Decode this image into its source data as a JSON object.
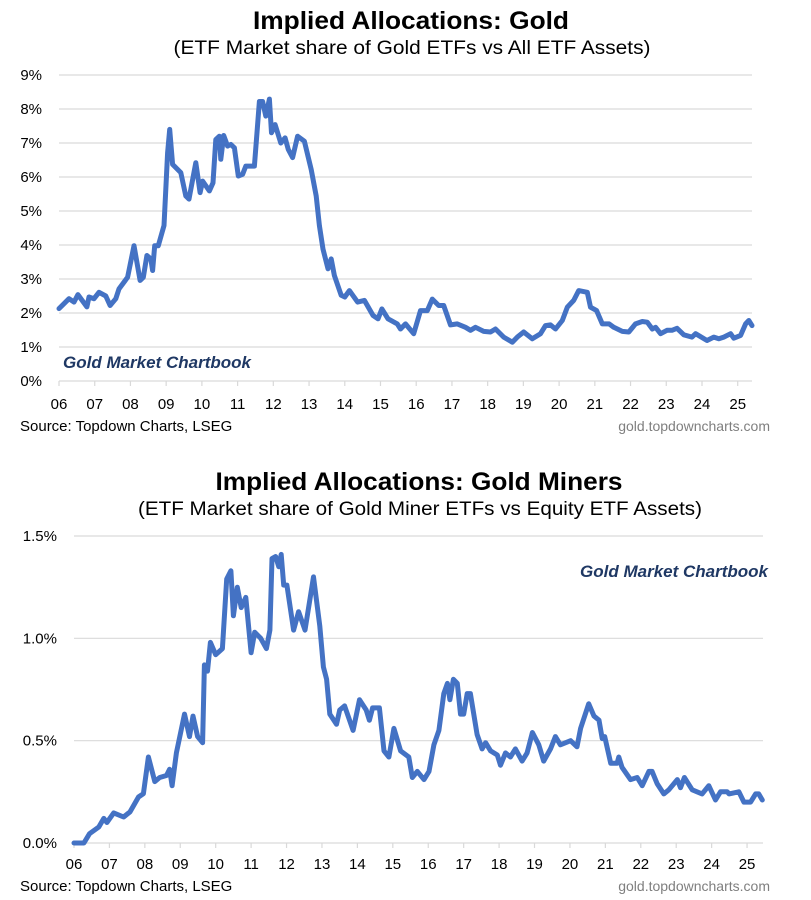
{
  "colors": {
    "line": "#4472c4",
    "brand": "#1f3864",
    "grid": "#d9d9d9"
  },
  "chart_data": [
    {
      "type": "line",
      "title": "Implied Allocations: Gold",
      "subtitle": "(ETF Market share of Gold ETFs vs All ETF Assets)",
      "source": "Source: Topdown Charts, LSEG",
      "url": "gold.topdowncharts.com",
      "watermark": "Gold Market Chartbook",
      "xlim": [
        2006,
        2025.4
      ],
      "ylim": [
        0,
        9
      ],
      "grid": true,
      "x_ticks": [
        2006,
        2007,
        2008,
        2009,
        2010,
        2011,
        2012,
        2013,
        2014,
        2015,
        2016,
        2017,
        2018,
        2019,
        2020,
        2021,
        2022,
        2023,
        2024,
        2025
      ],
      "x_tick_labels": [
        "06",
        "07",
        "08",
        "09",
        "10",
        "11",
        "12",
        "13",
        "14",
        "15",
        "16",
        "17",
        "18",
        "19",
        "20",
        "21",
        "22",
        "23",
        "24",
        "25"
      ],
      "y_ticks": [
        0,
        1,
        2,
        3,
        4,
        5,
        6,
        7,
        8,
        9
      ],
      "y_tick_labels": [
        "0%",
        "1%",
        "2%",
        "3%",
        "4%",
        "5%",
        "6%",
        "7%",
        "8%",
        "9%"
      ],
      "series": [
        {
          "x": [
            2006.0,
            2006.28,
            2006.42,
            2006.53,
            2006.78,
            2006.84,
            2006.98,
            2007.12,
            2007.31,
            2007.43,
            2007.59,
            2007.68,
            2007.92,
            2008.1,
            2008.27,
            2008.36,
            2008.46,
            2008.57,
            2008.62,
            2008.68,
            2008.78,
            2008.94,
            2009.04,
            2009.1,
            2009.18,
            2009.41,
            2009.55,
            2009.64,
            2009.83,
            2009.95,
            2010.02,
            2010.21,
            2010.31,
            2010.39,
            2010.49,
            2010.53,
            2010.61,
            2010.72,
            2010.81,
            2010.91,
            2011.02,
            2011.14,
            2011.23,
            2011.47,
            2011.61,
            2011.7,
            2011.79,
            2011.89,
            2011.95,
            2012.05,
            2012.21,
            2012.33,
            2012.42,
            2012.54,
            2012.68,
            2012.87,
            2013.06,
            2013.2,
            2013.29,
            2013.39,
            2013.53,
            2013.62,
            2013.71,
            2013.9,
            2014.0,
            2014.13,
            2014.36,
            2014.55,
            2014.79,
            2014.93,
            2015.04,
            2015.21,
            2015.47,
            2015.56,
            2015.7,
            2015.93,
            2016.12,
            2016.31,
            2016.45,
            2016.63,
            2016.77,
            2016.96,
            2017.15,
            2017.38,
            2017.52,
            2017.66,
            2017.89,
            2018.08,
            2018.22,
            2018.45,
            2018.69,
            2018.83,
            2019.01,
            2019.25,
            2019.48,
            2019.62,
            2019.76,
            2019.9,
            2020.09,
            2020.23,
            2020.41,
            2020.55,
            2020.79,
            2020.88,
            2021.05,
            2021.21,
            2021.4,
            2021.53,
            2021.77,
            2021.95,
            2022.14,
            2022.33,
            2022.47,
            2022.61,
            2022.7,
            2022.84,
            2023.02,
            2023.16,
            2023.3,
            2023.49,
            2023.72,
            2023.82,
            2024.14,
            2024.33,
            2024.47,
            2024.61,
            2024.8,
            2024.89,
            2025.08,
            2025.22,
            2025.31,
            2025.4
          ],
          "y": [
            2.13,
            2.42,
            2.32,
            2.54,
            2.18,
            2.47,
            2.42,
            2.61,
            2.5,
            2.22,
            2.42,
            2.71,
            3.05,
            3.98,
            2.96,
            3.05,
            3.69,
            3.59,
            3.25,
            3.98,
            3.98,
            4.57,
            6.71,
            7.4,
            6.37,
            6.13,
            5.44,
            5.35,
            6.42,
            5.54,
            5.88,
            5.59,
            5.83,
            7.1,
            7.2,
            6.52,
            7.22,
            6.91,
            6.96,
            6.86,
            6.03,
            6.08,
            6.32,
            6.32,
            8.22,
            8.22,
            7.79,
            8.29,
            7.3,
            7.54,
            7.0,
            7.15,
            6.81,
            6.57,
            7.2,
            7.05,
            6.22,
            5.44,
            4.57,
            3.88,
            3.3,
            3.59,
            3.1,
            2.52,
            2.47,
            2.66,
            2.32,
            2.37,
            1.93,
            1.83,
            2.12,
            1.83,
            1.68,
            1.53,
            1.68,
            1.39,
            2.07,
            2.07,
            2.41,
            2.22,
            2.22,
            1.65,
            1.68,
            1.58,
            1.49,
            1.58,
            1.46,
            1.44,
            1.53,
            1.29,
            1.14,
            1.29,
            1.44,
            1.24,
            1.39,
            1.63,
            1.65,
            1.53,
            1.78,
            2.17,
            2.37,
            2.66,
            2.61,
            2.17,
            2.07,
            1.68,
            1.68,
            1.58,
            1.46,
            1.44,
            1.68,
            1.75,
            1.73,
            1.53,
            1.58,
            1.39,
            1.49,
            1.49,
            1.55,
            1.36,
            1.29,
            1.39,
            1.19,
            1.29,
            1.24,
            1.29,
            1.39,
            1.26,
            1.34,
            1.68,
            1.78,
            1.63
          ]
        }
      ]
    },
    {
      "type": "line",
      "title": "Implied Allocations: Gold Miners",
      "subtitle": "(ETF Market share of Gold Miner ETFs vs Equity ETF Assets)",
      "source": "Source: Topdown Charts, LSEG",
      "url": "gold.topdowncharts.com",
      "watermark": "Gold Market Chartbook",
      "xlim": [
        2006,
        2025.45
      ],
      "ylim": [
        0,
        1.5
      ],
      "grid": true,
      "x_ticks": [
        2006,
        2007,
        2008,
        2009,
        2010,
        2011,
        2012,
        2013,
        2014,
        2015,
        2016,
        2017,
        2018,
        2019,
        2020,
        2021,
        2022,
        2023,
        2024,
        2025
      ],
      "x_tick_labels": [
        "06",
        "07",
        "08",
        "09",
        "10",
        "11",
        "12",
        "13",
        "14",
        "15",
        "16",
        "17",
        "18",
        "19",
        "20",
        "21",
        "22",
        "23",
        "24",
        "25"
      ],
      "y_ticks": [
        0,
        0.5,
        1.0,
        1.5
      ],
      "y_tick_labels": [
        "0.0%",
        "0.5%",
        "1.0%",
        "1.5%"
      ],
      "series": [
        {
          "x": [
            2006.0,
            2006.28,
            2006.44,
            2006.7,
            2006.84,
            2006.93,
            2007.12,
            2007.4,
            2007.58,
            2007.82,
            2007.96,
            2008.1,
            2008.28,
            2008.42,
            2008.61,
            2008.7,
            2008.77,
            2008.89,
            2009.12,
            2009.26,
            2009.36,
            2009.49,
            2009.63,
            2009.68,
            2009.77,
            2009.85,
            2010.0,
            2010.19,
            2010.31,
            2010.43,
            2010.5,
            2010.61,
            2010.72,
            2010.85,
            2011.0,
            2011.1,
            2011.27,
            2011.43,
            2011.53,
            2011.59,
            2011.69,
            2011.78,
            2011.85,
            2011.92,
            2012.01,
            2012.2,
            2012.34,
            2012.52,
            2012.76,
            2012.94,
            2013.04,
            2013.13,
            2013.22,
            2013.41,
            2013.5,
            2013.64,
            2013.88,
            2014.06,
            2014.25,
            2014.34,
            2014.43,
            2014.62,
            2014.75,
            2014.89,
            2015.03,
            2015.22,
            2015.45,
            2015.55,
            2015.69,
            2015.88,
            2016.02,
            2016.16,
            2016.3,
            2016.44,
            2016.54,
            2016.61,
            2016.71,
            2016.82,
            2016.91,
            2017.0,
            2017.1,
            2017.19,
            2017.38,
            2017.52,
            2017.62,
            2017.76,
            2017.95,
            2018.04,
            2018.18,
            2018.32,
            2018.46,
            2018.65,
            2018.79,
            2018.94,
            2019.12,
            2019.26,
            2019.45,
            2019.59,
            2019.73,
            2020.02,
            2020.2,
            2020.3,
            2020.53,
            2020.68,
            2020.82,
            2020.91,
            2020.98,
            2021.15,
            2021.33,
            2021.38,
            2021.47,
            2021.71,
            2021.9,
            2022.04,
            2022.23,
            2022.32,
            2022.46,
            2022.65,
            2022.79,
            2023.03,
            2023.12,
            2023.23,
            2023.45,
            2023.73,
            2023.92,
            2024.11,
            2024.25,
            2024.44,
            2024.49,
            2024.77,
            2024.91,
            2025.1,
            2025.24,
            2025.33,
            2025.43
          ],
          "y": [
            0,
            0,
            0.046,
            0.078,
            0.12,
            0.1,
            0.147,
            0.127,
            0.152,
            0.225,
            0.241,
            0.42,
            0.3,
            0.32,
            0.33,
            0.36,
            0.28,
            0.44,
            0.63,
            0.52,
            0.62,
            0.52,
            0.49,
            0.87,
            0.84,
            0.98,
            0.92,
            0.95,
            1.29,
            1.33,
            1.11,
            1.25,
            1.15,
            1.2,
            0.93,
            1.03,
            1.0,
            0.95,
            1.04,
            1.39,
            1.4,
            1.35,
            1.41,
            1.26,
            1.26,
            1.04,
            1.13,
            1.04,
            1.3,
            1.06,
            0.86,
            0.8,
            0.63,
            0.58,
            0.65,
            0.67,
            0.55,
            0.7,
            0.65,
            0.6,
            0.66,
            0.66,
            0.45,
            0.42,
            0.56,
            0.45,
            0.42,
            0.32,
            0.35,
            0.31,
            0.35,
            0.48,
            0.55,
            0.73,
            0.78,
            0.7,
            0.8,
            0.78,
            0.63,
            0.63,
            0.73,
            0.73,
            0.53,
            0.46,
            0.49,
            0.45,
            0.43,
            0.38,
            0.44,
            0.42,
            0.46,
            0.4,
            0.44,
            0.54,
            0.48,
            0.4,
            0.46,
            0.52,
            0.48,
            0.5,
            0.47,
            0.56,
            0.68,
            0.62,
            0.6,
            0.51,
            0.52,
            0.39,
            0.39,
            0.42,
            0.37,
            0.31,
            0.32,
            0.28,
            0.35,
            0.35,
            0.29,
            0.24,
            0.26,
            0.31,
            0.27,
            0.32,
            0.26,
            0.24,
            0.28,
            0.21,
            0.25,
            0.25,
            0.24,
            0.25,
            0.2,
            0.2,
            0.24,
            0.24,
            0.21
          ]
        }
      ]
    }
  ]
}
